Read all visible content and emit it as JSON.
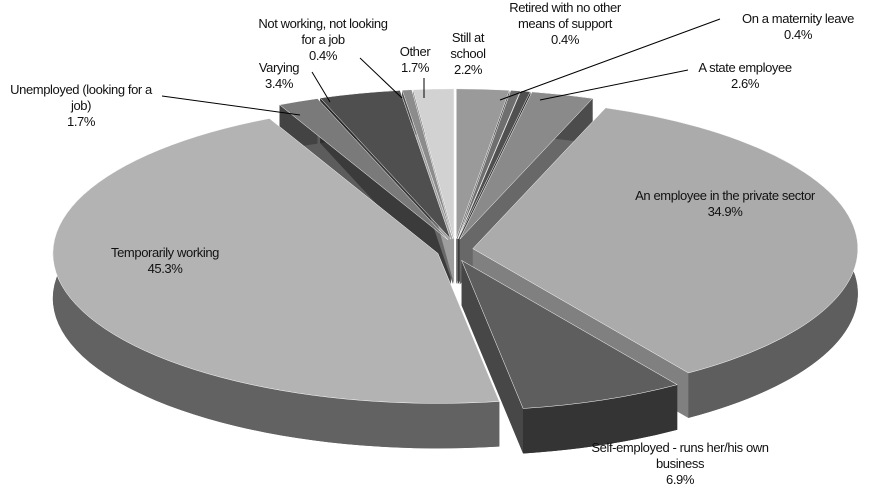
{
  "chart_data": {
    "type": "pie",
    "categories": [
      "Still at school",
      "Retired with no other means of support",
      "On a maternity leave",
      "A state employee",
      "An employee in the private sector",
      "Self-employed - runs her/his own business",
      "Temporarily working",
      "Unemployed (looking for a job)",
      "Varying",
      "Not working, not looking for a job",
      "Other"
    ],
    "values": [
      2.2,
      0.4,
      0.4,
      2.6,
      34.9,
      6.9,
      45.3,
      1.7,
      3.4,
      0.4,
      1.7
    ],
    "value_labels": [
      "2.2%",
      "0.4%",
      "0.4%",
      "2.6%",
      "34.9%",
      "6.9%",
      "45.3%",
      "1.7%",
      "3.4%",
      "0.4%",
      "1.7%"
    ],
    "colors": [
      "#9a9a9a",
      "#6f6f6f",
      "#505050",
      "#8a8a8a",
      "#ababab",
      "#5e5e5e",
      "#b3b3b3",
      "#7a7a7a",
      "#4f4f4f",
      "#8c8c8c",
      "#d2d2d2"
    ]
  }
}
